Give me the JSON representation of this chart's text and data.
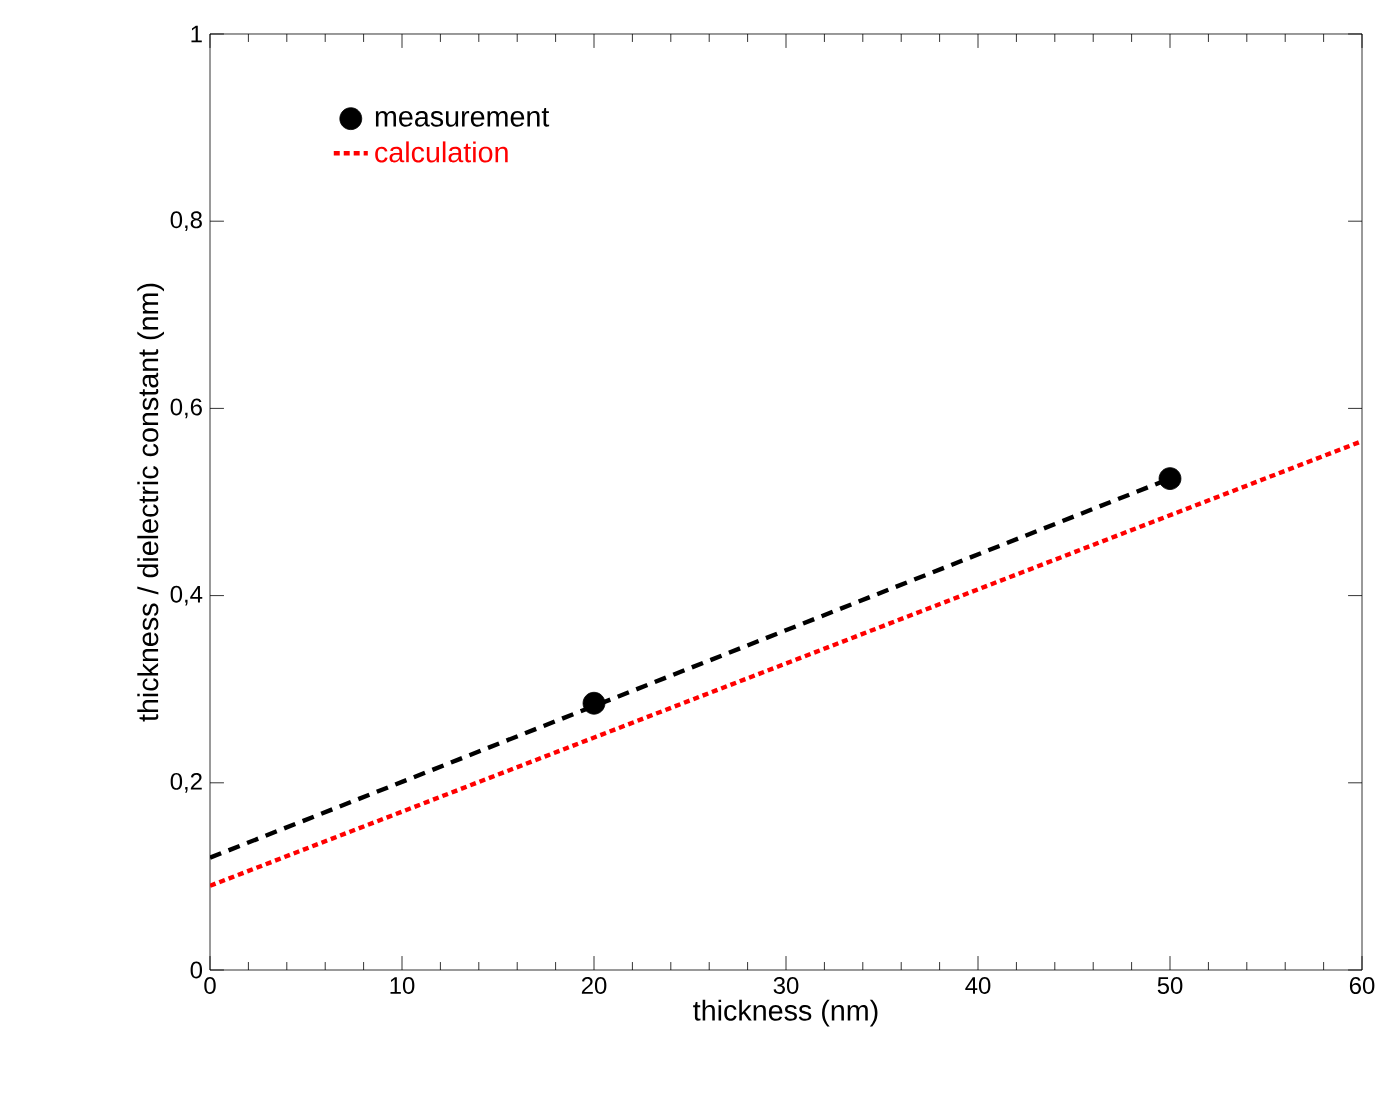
{
  "chart_data": {
    "type": "scatter",
    "xlabel": "thickness (nm)",
    "ylabel": "thickness / dielectric constant  (nm)",
    "xlim": [
      0,
      60
    ],
    "ylim": [
      0,
      1
    ],
    "xticks": [
      0,
      10,
      20,
      30,
      40,
      50,
      60
    ],
    "yticks": [
      0,
      {
        "value": 0.2,
        "label": "0,2"
      },
      {
        "value": 0.4,
        "label": "0,4"
      },
      {
        "value": 0.6,
        "label": "0,6"
      },
      {
        "value": 0.8,
        "label": "0,8"
      },
      1
    ],
    "grid": false,
    "legend": "top left",
    "series": [
      {
        "name": "measurement",
        "color": "#000000",
        "marker": "circle",
        "x": [
          20,
          50
        ],
        "values": [
          0.285,
          0.525
        ]
      },
      {
        "type": "line",
        "color": "#000000",
        "line_style": "dashed",
        "marker": "none",
        "x": [
          0,
          50
        ],
        "values": [
          0.12,
          0.525
        ]
      },
      {
        "name": "calculation",
        "type": "line",
        "color": "#ff0000",
        "line_style": "dotted",
        "marker": "none",
        "x": [
          0,
          60
        ],
        "values": [
          0.09,
          0.565
        ]
      }
    ]
  }
}
